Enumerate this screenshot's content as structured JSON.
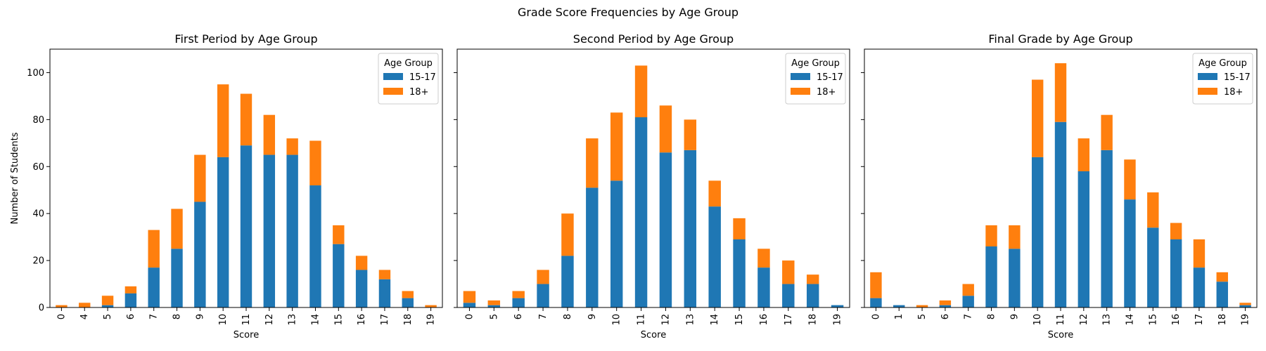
{
  "figure": {
    "title": "Grade Score Frequencies by Age Group"
  },
  "chart_data": [
    {
      "type": "bar",
      "stacked": true,
      "title": "First Period by Age Group",
      "xlabel": "Score",
      "ylabel": "Number of Students",
      "ylim": [
        0,
        110
      ],
      "yticks": [
        0,
        20,
        40,
        60,
        80,
        100
      ],
      "legend": {
        "title": "Age Group",
        "placement": "top-right"
      },
      "categories": [
        "0",
        "4",
        "5",
        "6",
        "7",
        "8",
        "9",
        "10",
        "11",
        "12",
        "13",
        "14",
        "15",
        "16",
        "17",
        "18",
        "19"
      ],
      "series": [
        {
          "name": "15-17",
          "color": "#1f77b4",
          "values": [
            0,
            0,
            1,
            6,
            17,
            25,
            45,
            64,
            69,
            65,
            65,
            52,
            27,
            16,
            12,
            4,
            0
          ]
        },
        {
          "name": "18+",
          "color": "#ff7f0e",
          "values": [
            1,
            2,
            4,
            3,
            16,
            17,
            20,
            31,
            22,
            17,
            7,
            19,
            8,
            6,
            4,
            3,
            1
          ]
        }
      ]
    },
    {
      "type": "bar",
      "stacked": true,
      "title": "Second Period by Age Group",
      "xlabel": "Score",
      "ylabel": "",
      "ylim": [
        0,
        110
      ],
      "yticks": [
        0,
        20,
        40,
        60,
        80,
        100
      ],
      "legend": {
        "title": "Age Group",
        "placement": "top-right"
      },
      "categories": [
        "0",
        "5",
        "6",
        "7",
        "8",
        "9",
        "10",
        "11",
        "12",
        "13",
        "14",
        "15",
        "16",
        "17",
        "18",
        "19"
      ],
      "series": [
        {
          "name": "15-17",
          "color": "#1f77b4",
          "values": [
            2,
            1,
            4,
            10,
            22,
            51,
            54,
            81,
            66,
            67,
            43,
            29,
            17,
            10,
            10,
            1
          ]
        },
        {
          "name": "18+",
          "color": "#ff7f0e",
          "values": [
            5,
            2,
            3,
            6,
            18,
            21,
            29,
            22,
            20,
            13,
            11,
            9,
            8,
            10,
            4,
            0
          ]
        }
      ]
    },
    {
      "type": "bar",
      "stacked": true,
      "title": "Final Grade by Age Group",
      "xlabel": "Score",
      "ylabel": "",
      "ylim": [
        0,
        110
      ],
      "yticks": [
        0,
        20,
        40,
        60,
        80,
        100
      ],
      "legend": {
        "title": "Age Group",
        "placement": "top-right"
      },
      "categories": [
        "0",
        "1",
        "5",
        "6",
        "7",
        "8",
        "9",
        "10",
        "11",
        "12",
        "13",
        "14",
        "15",
        "16",
        "17",
        "18",
        "19"
      ],
      "series": [
        {
          "name": "15-17",
          "color": "#1f77b4",
          "values": [
            4,
            1,
            0,
            1,
            5,
            26,
            25,
            64,
            79,
            58,
            67,
            46,
            34,
            29,
            17,
            11,
            1
          ]
        },
        {
          "name": "18+",
          "color": "#ff7f0e",
          "values": [
            11,
            0,
            1,
            2,
            5,
            9,
            10,
            33,
            25,
            14,
            15,
            17,
            15,
            7,
            12,
            4,
            1
          ]
        }
      ]
    }
  ]
}
